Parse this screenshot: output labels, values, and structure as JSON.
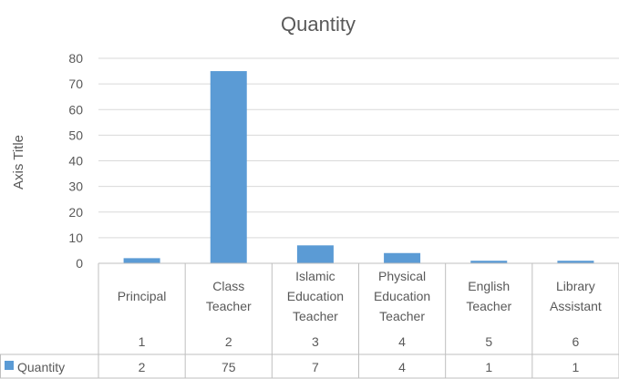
{
  "chart_data": {
    "type": "bar",
    "title": "Quantity",
    "ylabel": "Axis Title",
    "ylim": [
      0,
      80
    ],
    "yticks": [
      0,
      10,
      20,
      30,
      40,
      50,
      60,
      70,
      80
    ],
    "grid": true,
    "categories": [
      [
        "Principal"
      ],
      [
        "Class",
        "Teacher"
      ],
      [
        "Islamic",
        "Education",
        "Teacher"
      ],
      [
        "Physical",
        "Education",
        "Teacher"
      ],
      [
        "English",
        "Teacher"
      ],
      [
        "Library",
        "Assistant"
      ]
    ],
    "index_labels": [
      "1",
      "2",
      "3",
      "4",
      "5",
      "6"
    ],
    "series": [
      {
        "name": "Quantity",
        "values": [
          2,
          75,
          7,
          4,
          1,
          1
        ]
      }
    ],
    "bar_color": "#5b9bd5",
    "data_table": true
  }
}
